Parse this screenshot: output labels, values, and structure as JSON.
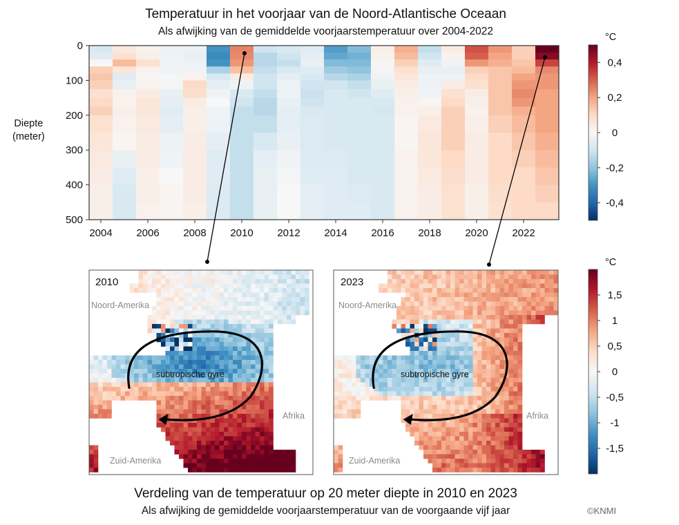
{
  "top_title": "Temperatuur in het voorjaar van de Noord-Atlantische Oceaan",
  "top_subtitle": "Als afwijking van de gemiddelde voorjaarstemperatuur over 2004-2022",
  "bottom_title": "Verdeling van de temperatuur op 20 meter diepte in 2010 en 2023",
  "bottom_subtitle": "Als afwijking de gemiddelde voorjaarstemperatuur van de voorgaande vijf jaar",
  "credit": "©KNMI",
  "chart_data": [
    {
      "type": "heatmap",
      "title": "Temperatuur in het voorjaar van de Noord-Atlantische Oceaan",
      "subtitle": "Als afwijking van de gemiddelde voorjaarstemperatuur over 2004-2022",
      "xlabel": "",
      "ylabel": "Diepte\n(meter)",
      "x": [
        2004,
        2005,
        2006,
        2007,
        2008,
        2009,
        2010,
        2011,
        2012,
        2013,
        2014,
        2015,
        2016,
        2017,
        2018,
        2019,
        2020,
        2021,
        2022,
        2023
      ],
      "x_ticks": [
        "2004",
        "2006",
        "2008",
        "2010",
        "2012",
        "2014",
        "2016",
        "2018",
        "2020",
        "2022"
      ],
      "y_depths": [
        0,
        20,
        40,
        60,
        80,
        100,
        125,
        150,
        175,
        200,
        250,
        300,
        350,
        400,
        450,
        500
      ],
      "y_ticks": [
        "0",
        "100",
        "200",
        "300",
        "400",
        "500"
      ],
      "ylim": [
        0,
        500
      ],
      "colorbar": {
        "unit": "°C",
        "range": [
          -0.5,
          0.5
        ],
        "ticks": [
          "0,4",
          "0,2",
          "0",
          "-0,2",
          "-0,4"
        ],
        "tick_values": [
          0.4,
          0.2,
          0,
          -0.2,
          -0.4
        ]
      },
      "values": [
        [
          -0.08,
          -0.06,
          0.0,
          0.12,
          0.14,
          0.12,
          0.08,
          0.1,
          0.12,
          0.08,
          0.06,
          0.05,
          0.04,
          0.03,
          0.03
        ],
        [
          0.05,
          0.08,
          0.16,
          0.06,
          -0.06,
          -0.04,
          0.02,
          0.02,
          0.03,
          0.02,
          0.01,
          -0.04,
          -0.06,
          -0.08,
          -0.08
        ],
        [
          0.02,
          0.03,
          0.08,
          0.02,
          0.01,
          0.02,
          0.04,
          0.06,
          0.06,
          0.05,
          0.04,
          0.04,
          0.03,
          0.03,
          0.02
        ],
        [
          -0.03,
          -0.03,
          -0.02,
          -0.02,
          -0.01,
          -0.01,
          -0.04,
          -0.05,
          -0.06,
          -0.05,
          -0.03,
          -0.02,
          0.0,
          0.01,
          0.01
        ],
        [
          -0.03,
          -0.04,
          -0.03,
          -0.02,
          0.02,
          0.1,
          0.09,
          0.04,
          0.03,
          0.03,
          0.04,
          0.04,
          0.04,
          0.04,
          0.03
        ],
        [
          -0.3,
          -0.32,
          -0.3,
          -0.16,
          -0.08,
          -0.05,
          -0.02,
          0.0,
          -0.02,
          -0.03,
          -0.05,
          -0.06,
          -0.06,
          -0.07,
          -0.07
        ],
        [
          0.25,
          0.24,
          0.22,
          0.15,
          0.04,
          -0.02,
          -0.08,
          -0.1,
          -0.12,
          -0.12,
          -0.12,
          -0.12,
          -0.12,
          -0.12,
          -0.12
        ],
        [
          -0.1,
          -0.14,
          -0.14,
          -0.12,
          -0.1,
          -0.1,
          -0.12,
          -0.14,
          -0.14,
          -0.12,
          -0.08,
          -0.05,
          -0.04,
          -0.04,
          -0.04
        ],
        [
          -0.08,
          -0.1,
          -0.12,
          -0.08,
          -0.05,
          -0.03,
          -0.03,
          -0.04,
          -0.05,
          -0.05,
          -0.04,
          -0.02,
          -0.01,
          0.0,
          0.0
        ],
        [
          -0.06,
          -0.05,
          -0.04,
          -0.06,
          -0.08,
          -0.1,
          -0.11,
          -0.1,
          -0.08,
          -0.07,
          -0.07,
          -0.07,
          -0.06,
          -0.05,
          -0.05
        ],
        [
          -0.28,
          -0.26,
          -0.22,
          -0.18,
          -0.14,
          -0.1,
          -0.08,
          -0.08,
          -0.08,
          -0.08,
          -0.08,
          -0.07,
          -0.06,
          -0.06,
          -0.06
        ],
        [
          -0.22,
          -0.24,
          -0.22,
          -0.2,
          -0.16,
          -0.12,
          -0.1,
          -0.08,
          -0.08,
          -0.08,
          -0.08,
          -0.08,
          -0.08,
          -0.07,
          -0.06
        ],
        [
          0.03,
          0.02,
          0.01,
          -0.01,
          -0.02,
          -0.04,
          -0.06,
          -0.08,
          -0.09,
          -0.08,
          -0.08,
          -0.08,
          -0.08,
          -0.08,
          -0.08
        ],
        [
          0.18,
          0.16,
          0.12,
          0.08,
          0.06,
          0.04,
          0.03,
          0.02,
          0.02,
          0.01,
          0.01,
          0.02,
          0.02,
          0.02,
          0.02
        ],
        [
          -0.12,
          -0.1,
          -0.06,
          -0.04,
          -0.03,
          -0.03,
          -0.02,
          0.01,
          0.03,
          0.05,
          0.06,
          0.06,
          0.05,
          0.04,
          0.04
        ],
        [
          0.04,
          0.02,
          -0.02,
          -0.04,
          -0.02,
          0.04,
          0.08,
          0.1,
          0.12,
          0.12,
          0.12,
          0.1,
          0.09,
          0.08,
          0.08
        ],
        [
          0.32,
          0.3,
          0.22,
          0.12,
          0.1,
          0.08,
          0.04,
          0.03,
          0.02,
          0.03,
          0.04,
          0.04,
          0.04,
          0.03,
          0.03
        ],
        [
          0.22,
          0.2,
          0.18,
          0.14,
          0.14,
          0.14,
          0.14,
          0.14,
          0.14,
          0.12,
          0.1,
          0.1,
          0.1,
          0.09,
          0.08
        ],
        [
          0.12,
          0.12,
          0.14,
          0.16,
          0.2,
          0.22,
          0.24,
          0.22,
          0.18,
          0.16,
          0.14,
          0.12,
          0.1,
          0.1,
          0.1
        ],
        [
          0.5,
          0.46,
          0.34,
          0.24,
          0.22,
          0.22,
          0.2,
          0.2,
          0.2,
          0.2,
          0.18,
          0.16,
          0.14,
          0.12,
          0.1
        ]
      ],
      "callouts": [
        {
          "year": 2010,
          "depth": 20,
          "to_map": "2010"
        },
        {
          "year": 2023,
          "depth": 20,
          "to_map": "2023"
        }
      ]
    },
    {
      "type": "heatmap",
      "title": "Verdeling van de temperatuur op 20 meter diepte in 2010 en 2023",
      "subtitle": "Als afwijking de gemiddelde voorjaarstemperatuur van de voorgaande vijf jaar",
      "colorbar": {
        "unit": "°C",
        "range": [
          -2,
          2
        ],
        "ticks": [
          "1,5",
          "1",
          "0,5",
          "0",
          "-0,5",
          "-1",
          "-1,5"
        ],
        "tick_values": [
          1.5,
          1,
          0.5,
          0,
          -0.5,
          -1,
          -1.5
        ]
      },
      "panels": [
        {
          "label": "2010",
          "region_labels": [
            "Noord-Amerika",
            "Zuid-Amerika",
            "Afrika"
          ],
          "annotation": "subtropische gyre",
          "summary": {
            "subtropical_gyre": "negative (about -0.3 to -1.5)",
            "tropics_south": "positive (about +1 to +2)",
            "gulf_stream": "mixed (-1.8 to +1.8)"
          }
        },
        {
          "label": "2023",
          "region_labels": [
            "Noord-Amerika",
            "Zuid-Amerika",
            "Afrika"
          ],
          "annotation": "subtropische gyre",
          "summary": {
            "subtropical_gyre": "slightly negative (about -0.2 to -0.8)",
            "east_and_south": "positive (about +0.5 to +2)",
            "gulf_stream": "mixed (-1.8 to +1.8)"
          }
        }
      ]
    }
  ]
}
